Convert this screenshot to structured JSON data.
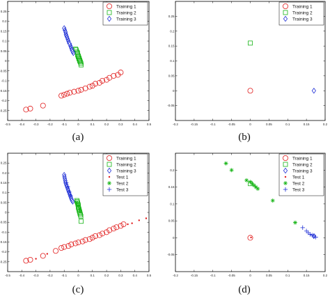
{
  "colors": {
    "Training 1": "#e11d1d",
    "Training 2": "#17b517",
    "Training 3": "#1f2fd6",
    "Test 1": "#e11d1d",
    "Test 2": "#17b517",
    "Test 3": "#1f2fd6",
    "frame": "#000000"
  },
  "chart_data": [
    {
      "type": "scatter",
      "caption": "(a)",
      "xlim": [
        -0.5,
        0.5
      ],
      "ylim": [
        -0.3,
        0.3
      ],
      "xticks": [
        -0.5,
        -0.4,
        -0.3,
        -0.2,
        -0.1,
        0,
        0.1,
        0.2,
        0.3,
        0.4,
        0.5
      ],
      "yticks": [
        -0.25,
        -0.2,
        -0.15,
        -0.1,
        -0.05,
        0,
        0.05,
        0.1,
        0.15,
        0.2,
        0.25
      ],
      "xtick_labels": [
        "-0.5",
        "-0.4",
        "-0.3",
        "-0.2",
        "-0.1",
        "0",
        "0.1",
        "0.2",
        "0.3",
        "0.4",
        "0.5"
      ],
      "ytick_labels": [
        "-0.25",
        "-0.2",
        "-0.15",
        "-0.1",
        "-0.05",
        "0",
        "0.05",
        "0.1",
        "0.15",
        "0.2",
        "0.25"
      ],
      "legend_position": "top-right",
      "legend": [
        "Training 1",
        "Training 2",
        "Training 3"
      ],
      "series": [
        {
          "name": "Training 1",
          "marker": "circle",
          "points": [
            [
              -0.37,
              -0.245
            ],
            [
              -0.34,
              -0.24
            ],
            [
              -0.25,
              -0.225
            ],
            [
              -0.12,
              -0.175
            ],
            [
              -0.1,
              -0.17
            ],
            [
              -0.08,
              -0.165
            ],
            [
              -0.06,
              -0.16
            ],
            [
              -0.03,
              -0.155
            ],
            [
              0,
              -0.15
            ],
            [
              0.02,
              -0.145
            ],
            [
              0.05,
              -0.138
            ],
            [
              0.08,
              -0.13
            ],
            [
              0.1,
              -0.125
            ],
            [
              0.12,
              -0.115
            ],
            [
              0.15,
              -0.11
            ],
            [
              0.17,
              -0.1
            ],
            [
              0.2,
              -0.095
            ],
            [
              0.22,
              -0.085
            ],
            [
              0.25,
              -0.075
            ],
            [
              0.28,
              -0.07
            ],
            [
              0.3,
              -0.058
            ]
          ]
        },
        {
          "name": "Training 2",
          "marker": "square",
          "points": [
            [
              -0.02,
              0.06
            ],
            [
              -0.015,
              0.055
            ],
            [
              -0.01,
              0.045
            ],
            [
              -0.005,
              0.04
            ],
            [
              -0.005,
              0.03
            ],
            [
              0,
              0.025
            ],
            [
              0,
              0.02
            ],
            [
              0.005,
              0.015
            ],
            [
              0.005,
              0.01
            ],
            [
              0.01,
              0.005
            ],
            [
              0.01,
              0
            ],
            [
              0.015,
              -0.005
            ],
            [
              0.018,
              -0.012
            ],
            [
              0.02,
              -0.02
            ]
          ]
        },
        {
          "name": "Training 3",
          "marker": "diamond",
          "points": [
            [
              -0.1,
              0.165
            ],
            [
              -0.095,
              0.155
            ],
            [
              -0.09,
              0.145
            ],
            [
              -0.088,
              0.135
            ],
            [
              -0.085,
              0.128
            ],
            [
              -0.08,
              0.12
            ],
            [
              -0.075,
              0.11
            ],
            [
              -0.07,
              0.1
            ],
            [
              -0.065,
              0.09
            ],
            [
              -0.06,
              0.085
            ],
            [
              -0.055,
              0.075
            ],
            [
              -0.05,
              0.065
            ],
            [
              -0.045,
              0.055
            ],
            [
              -0.04,
              0.048
            ],
            [
              -0.035,
              0.04
            ]
          ]
        }
      ]
    },
    {
      "type": "scatter",
      "caption": "(b)",
      "xlim": [
        -0.2,
        0.2
      ],
      "ylim": [
        -0.1,
        0.3
      ],
      "xticks": [
        -0.2,
        -0.15,
        -0.1,
        -0.05,
        0,
        0.05,
        0.1,
        0.15,
        0.2
      ],
      "yticks": [
        -0.05,
        0,
        0.05,
        0.1,
        0.15,
        0.2,
        0.25
      ],
      "xtick_labels": [
        "-0.2",
        "-0.15",
        "-0.1",
        "-0.05",
        "0",
        "0.05",
        "0.1",
        "0.15",
        "0.2"
      ],
      "ytick_labels": [
        "-0.05",
        "0",
        "0.05",
        "0.1",
        "0.15",
        "0.2",
        "0.25"
      ],
      "legend_position": "top-right",
      "legend": [
        "Training 1",
        "Training 2",
        "Training 3"
      ],
      "series": [
        {
          "name": "Training 1",
          "marker": "circle",
          "points": [
            [
              0,
              0
            ]
          ]
        },
        {
          "name": "Training 2",
          "marker": "square",
          "points": [
            [
              0,
              0.16
            ]
          ]
        },
        {
          "name": "Training 3",
          "marker": "diamond",
          "points": [
            [
              0.17,
              0
            ]
          ]
        }
      ]
    },
    {
      "type": "scatter",
      "caption": "(c)",
      "xlim": [
        -0.5,
        0.5
      ],
      "ylim": [
        -0.3,
        0.3
      ],
      "xticks": [
        -0.5,
        -0.4,
        -0.3,
        -0.2,
        -0.1,
        0,
        0.1,
        0.2,
        0.3,
        0.4,
        0.5
      ],
      "yticks": [
        -0.25,
        -0.2,
        -0.15,
        -0.1,
        -0.05,
        0,
        0.05,
        0.1,
        0.15,
        0.2,
        0.25
      ],
      "xtick_labels": [
        "-0.5",
        "-0.4",
        "-0.3",
        "-0.2",
        "-0.1",
        "0",
        "0.1",
        "0.2",
        "0.3",
        "0.4",
        "0.5"
      ],
      "ytick_labels": [
        "-0.25",
        "-0.2",
        "-0.15",
        "-0.1",
        "-0.05",
        "0",
        "0.05",
        "0.1",
        "0.15",
        "0.2",
        "0.25"
      ],
      "legend_position": "top-right",
      "legend": [
        "Training 1",
        "Training 2",
        "Training 3",
        "Test 1",
        "Test 2",
        "Test 3"
      ],
      "series": [
        {
          "name": "Training 1",
          "marker": "circle",
          "points": [
            [
              -0.37,
              -0.245
            ],
            [
              -0.34,
              -0.24
            ],
            [
              -0.25,
              -0.22
            ],
            [
              -0.16,
              -0.195
            ],
            [
              -0.12,
              -0.18
            ],
            [
              -0.1,
              -0.175
            ],
            [
              -0.07,
              -0.17
            ],
            [
              -0.05,
              -0.162
            ],
            [
              -0.02,
              -0.157
            ],
            [
              0,
              -0.152
            ],
            [
              0.03,
              -0.147
            ],
            [
              0.05,
              -0.14
            ],
            [
              0.08,
              -0.135
            ],
            [
              0.1,
              -0.128
            ],
            [
              0.12,
              -0.12
            ],
            [
              0.15,
              -0.115
            ],
            [
              0.17,
              -0.107
            ],
            [
              0.2,
              -0.1
            ],
            [
              0.22,
              -0.09
            ],
            [
              0.25,
              -0.082
            ],
            [
              0.27,
              -0.075
            ],
            [
              0.3,
              -0.068
            ],
            [
              0.32,
              -0.06
            ]
          ]
        },
        {
          "name": "Training 2",
          "marker": "square",
          "points": [
            [
              -0.01,
              0.06
            ],
            [
              -0.008,
              0.055
            ],
            [
              -0.005,
              0.048
            ],
            [
              -0.002,
              0.04
            ],
            [
              0,
              0.035
            ],
            [
              0,
              0.028
            ],
            [
              0.002,
              0.022
            ],
            [
              0.005,
              0.015
            ],
            [
              0.007,
              0.008
            ],
            [
              0.01,
              0.002
            ],
            [
              0.012,
              -0.005
            ],
            [
              0.015,
              -0.012
            ],
            [
              0.018,
              -0.02
            ],
            [
              0.02,
              -0.045
            ]
          ]
        },
        {
          "name": "Training 3",
          "marker": "diamond",
          "points": [
            [
              -0.1,
              0.19
            ],
            [
              -0.098,
              0.18
            ],
            [
              -0.095,
              0.17
            ],
            [
              -0.092,
              0.16
            ],
            [
              -0.09,
              0.15
            ],
            [
              -0.085,
              0.14
            ],
            [
              -0.08,
              0.13
            ],
            [
              -0.075,
              0.12
            ],
            [
              -0.07,
              0.11
            ],
            [
              -0.065,
              0.1
            ],
            [
              -0.06,
              0.09
            ],
            [
              -0.055,
              0.08
            ],
            [
              -0.05,
              0.07
            ],
            [
              -0.045,
              0.062
            ],
            [
              -0.04,
              0.055
            ]
          ]
        },
        {
          "name": "Test 1",
          "marker": "dot",
          "points": [
            [
              -0.3,
              -0.235
            ],
            [
              -0.22,
              -0.21
            ],
            [
              0.35,
              -0.06
            ],
            [
              0.38,
              -0.055
            ],
            [
              0.43,
              -0.04
            ],
            [
              0.48,
              -0.03
            ]
          ]
        },
        {
          "name": "Test 2",
          "marker": "star",
          "points": [
            [
              -0.012,
              0.05
            ],
            [
              0.0,
              0.035
            ],
            [
              0.008,
              0.018
            ],
            [
              0.012,
              0.005
            ]
          ]
        },
        {
          "name": "Test 3",
          "marker": "plus",
          "points": [
            [
              -0.085,
              0.15
            ],
            [
              -0.075,
              0.13
            ],
            [
              -0.065,
              0.105
            ],
            [
              -0.055,
              0.085
            ]
          ]
        }
      ]
    },
    {
      "type": "scatter",
      "caption": "(d)",
      "xlim": [
        -0.2,
        0.2
      ],
      "ylim": [
        -0.1,
        0.25
      ],
      "xticks": [
        -0.2,
        -0.15,
        -0.1,
        -0.05,
        0,
        0.05,
        0.1,
        0.15,
        0.2
      ],
      "yticks": [
        -0.05,
        0,
        0.05,
        0.1,
        0.15,
        0.2
      ],
      "xtick_labels": [
        "-0.2",
        "-0.15",
        "-0.1",
        "-0.05",
        "0",
        "0.05",
        "0.1",
        "0.15",
        "0.2"
      ],
      "ytick_labels": [
        "-0.05",
        "0",
        "0.05",
        "0.1",
        "0.15",
        "0.2"
      ],
      "legend_position": "top-right",
      "legend": [
        "Training 1",
        "Training 2",
        "Training 3",
        "Test 1",
        "Test 2",
        "Test 3"
      ],
      "series": [
        {
          "name": "Training 1",
          "marker": "circle",
          "points": [
            [
              0,
              0
            ]
          ]
        },
        {
          "name": "Training 2",
          "marker": "square",
          "points": [
            [
              0,
              0.16
            ]
          ]
        },
        {
          "name": "Training 3",
          "marker": "diamond",
          "points": [
            [
              0.17,
              0.005
            ]
          ]
        },
        {
          "name": "Test 1",
          "marker": "dot",
          "points": [
            [
              0.002,
              0.001
            ]
          ]
        },
        {
          "name": "Test 2",
          "marker": "star",
          "points": [
            [
              -0.065,
              0.22
            ],
            [
              -0.05,
              0.2
            ],
            [
              -0.01,
              0.17
            ],
            [
              0,
              0.165
            ],
            [
              0.005,
              0.16
            ],
            [
              0.01,
              0.155
            ],
            [
              0.015,
              0.15
            ],
            [
              0.02,
              0.145
            ],
            [
              0.06,
              0.11
            ],
            [
              0.12,
              0.045
            ]
          ]
        },
        {
          "name": "Test 3",
          "marker": "plus",
          "points": [
            [
              0.14,
              0.03
            ],
            [
              0.15,
              0.02
            ],
            [
              0.155,
              0.015
            ],
            [
              0.16,
              0.01
            ],
            [
              0.165,
              0.008
            ],
            [
              0.17,
              0.005
            ],
            [
              0.175,
              0.002
            ]
          ]
        }
      ]
    }
  ]
}
